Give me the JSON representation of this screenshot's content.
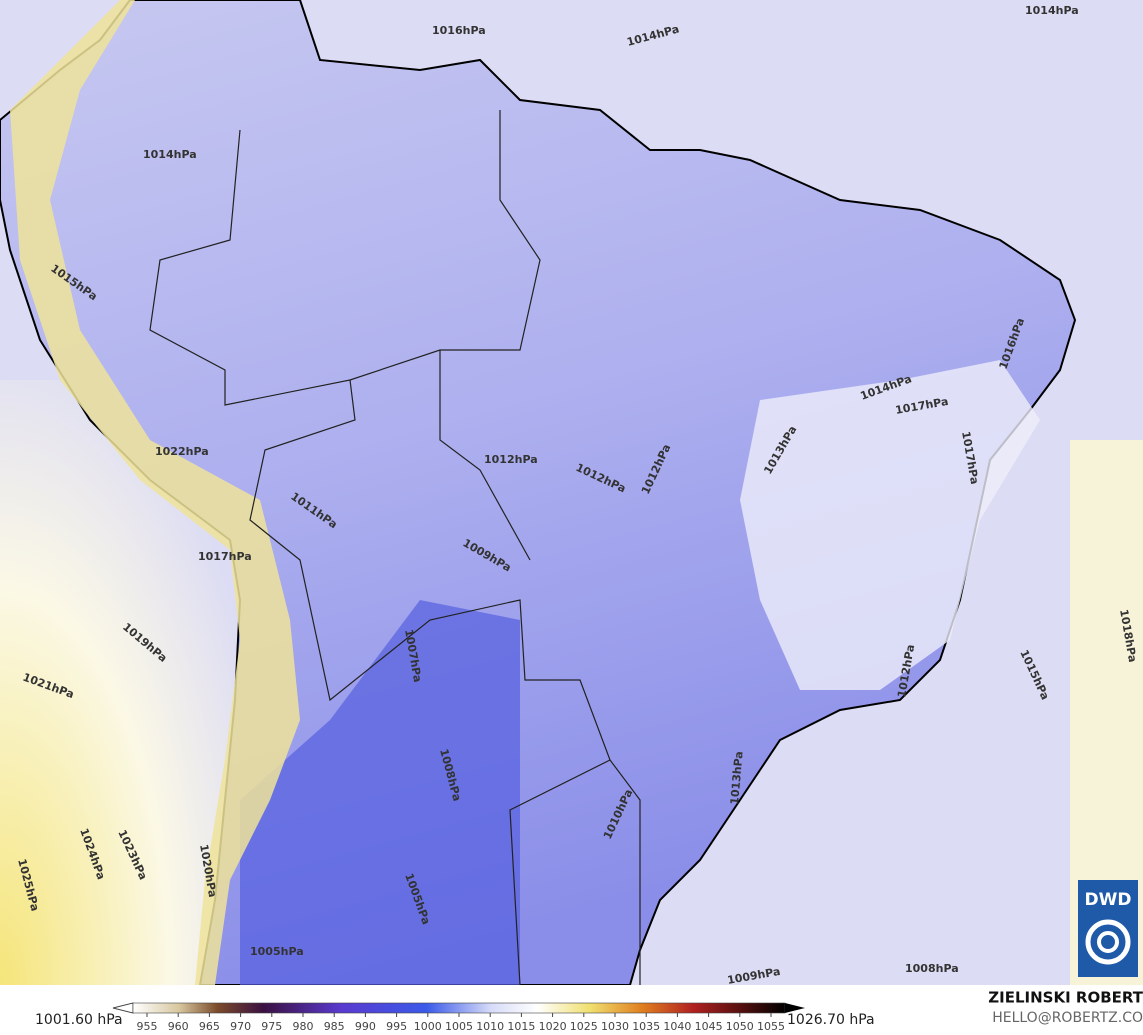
{
  "map": {
    "contour_labels": [
      "1014hPa",
      "1016hPa",
      "1014hPa",
      "1014hPa",
      "1015hPa",
      "1012hPa",
      "1012hPa",
      "1012hPa",
      "1014hPa",
      "1017hPa",
      "1013hPa",
      "1017hPa",
      "1016hPa",
      "1009hPa",
      "1011hPa",
      "1007hPa",
      "1008hPa",
      "1010hPa",
      "1013hPa",
      "1012hPa",
      "1015hPa",
      "1018hPa",
      "1019hPa",
      "1021hPa",
      "1024hPa",
      "1023hPa",
      "1025hPa",
      "1022hPa",
      "1017hPa",
      "1005hPa",
      "1005hPa",
      "1008hPa",
      "1009hPa",
      "1020hPa"
    ]
  },
  "legend": {
    "min_label": "1001.60 hPa",
    "max_label": "1026.70 hPa",
    "ticks": [
      955,
      960,
      965,
      970,
      975,
      980,
      985,
      990,
      995,
      1000,
      1005,
      1010,
      1015,
      1020,
      1025,
      1030,
      1035,
      1040,
      1045,
      1050,
      1055
    ]
  },
  "credit": {
    "name": "ZIELINSKI ROBERT",
    "email": "HELLO@ROBERTZ.CO"
  },
  "logo": "DWD"
}
